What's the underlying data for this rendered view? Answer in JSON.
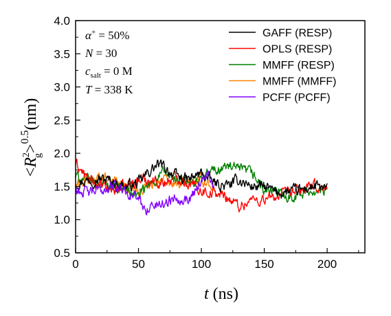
{
  "chart_data": {
    "type": "line",
    "title": "",
    "xlabel": {
      "var": "t",
      "unit": " (ns)"
    },
    "ylabel": {
      "pre": "<",
      "var": "R",
      "sup": "2",
      "sub": "g",
      "post": ">",
      "exp": "0.5",
      "unit": "(nm)"
    },
    "xlim": [
      0,
      230
    ],
    "ylim": [
      0.5,
      4.0
    ],
    "xticks": [
      0,
      50,
      100,
      150,
      200
    ],
    "yticks": [
      "0.5",
      "1.0",
      "1.5",
      "2.0",
      "2.5",
      "3.0",
      "3.5",
      "4.0"
    ],
    "grid": false,
    "legend_position": "top-right",
    "annotations": [
      {
        "var": "α",
        "sup": "+",
        "rest": " = 50%"
      },
      {
        "var": "N",
        "rest": " = 30"
      },
      {
        "var": "c",
        "sub": "salt",
        "rest": " = 0 M"
      },
      {
        "var": "T",
        "rest": " = 338 K"
      }
    ],
    "series": [
      {
        "name": "GAFF (RESP)",
        "color": "#000000",
        "x_end": 200,
        "x": [
          0,
          10,
          20,
          30,
          40,
          50,
          60,
          65,
          70,
          80,
          90,
          100,
          110,
          120,
          130,
          140,
          150,
          160,
          170,
          180,
          190,
          200
        ],
        "y": [
          1.55,
          1.6,
          1.62,
          1.58,
          1.5,
          1.55,
          1.75,
          1.82,
          1.8,
          1.65,
          1.6,
          1.7,
          1.55,
          1.5,
          1.6,
          1.5,
          1.5,
          1.4,
          1.42,
          1.45,
          1.5,
          1.45
        ]
      },
      {
        "name": "OPLS (RESP)",
        "color": "#ff0000",
        "x_end": 200,
        "x": [
          0,
          10,
          20,
          30,
          40,
          50,
          60,
          70,
          80,
          90,
          100,
          110,
          120,
          130,
          140,
          150,
          160,
          170,
          180,
          190,
          200
        ],
        "y": [
          1.85,
          1.6,
          1.5,
          1.45,
          1.5,
          1.6,
          1.6,
          1.55,
          1.65,
          1.55,
          1.45,
          1.4,
          1.35,
          1.2,
          1.3,
          1.3,
          1.35,
          1.4,
          1.45,
          1.5,
          1.45
        ]
      },
      {
        "name": "MMFF (RESP)",
        "color": "#008000",
        "x_end": 200,
        "x": [
          0,
          10,
          20,
          30,
          40,
          50,
          60,
          70,
          80,
          90,
          100,
          110,
          120,
          130,
          140,
          150,
          160,
          170,
          180,
          190,
          200
        ],
        "y": [
          1.65,
          1.6,
          1.55,
          1.5,
          1.45,
          1.35,
          1.55,
          1.7,
          1.6,
          1.55,
          1.6,
          1.75,
          1.8,
          1.75,
          1.7,
          1.45,
          1.4,
          1.35,
          1.4,
          1.45,
          1.4
        ]
      },
      {
        "name": "MMFF (MMFF)",
        "color": "#ff8000",
        "x_end": 110,
        "x": [
          0,
          10,
          20,
          30,
          40,
          50,
          60,
          70,
          80,
          90,
          100,
          110
        ],
        "y": [
          1.5,
          1.6,
          1.65,
          1.6,
          1.5,
          1.45,
          1.55,
          1.6,
          1.5,
          1.55,
          1.6,
          1.5
        ]
      },
      {
        "name": "PCFF (PCFF)",
        "color": "#8000ff",
        "x_end": 110,
        "x": [
          0,
          10,
          20,
          30,
          40,
          50,
          55,
          60,
          70,
          80,
          90,
          100,
          105,
          110
        ],
        "y": [
          1.45,
          1.4,
          1.45,
          1.5,
          1.45,
          1.3,
          1.15,
          1.2,
          1.25,
          1.35,
          1.3,
          1.6,
          1.7,
          1.45
        ]
      }
    ]
  }
}
